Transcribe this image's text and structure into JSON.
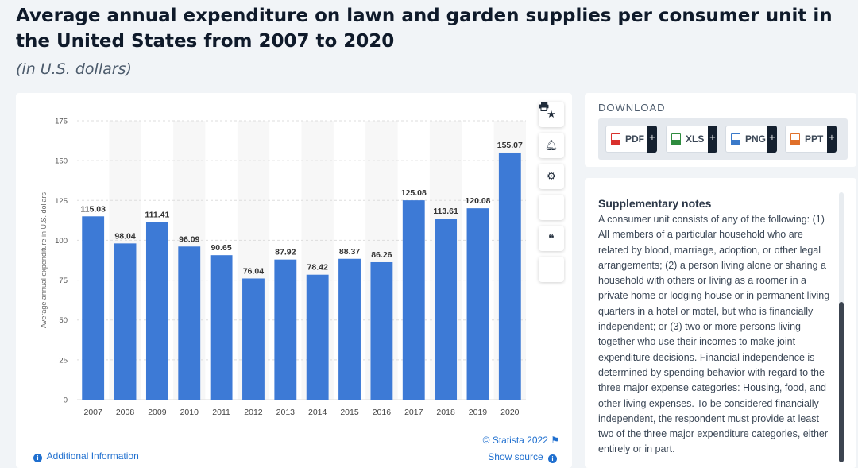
{
  "header": {
    "title": "Average annual expenditure on lawn and garden supplies per consumer unit in the United States from 2007 to 2020",
    "subtitle": "(in U.S. dollars)"
  },
  "toolbar": {
    "icons": [
      "star-icon",
      "bell-icon",
      "gear-icon",
      "share-icon",
      "quote-icon",
      "print-icon"
    ]
  },
  "chart_data": {
    "type": "bar",
    "categories": [
      "2007",
      "2008",
      "2009",
      "2010",
      "2011",
      "2012",
      "2013",
      "2014",
      "2015",
      "2016",
      "2017",
      "2018",
      "2019",
      "2020"
    ],
    "values": [
      115.03,
      98.04,
      111.41,
      96.09,
      90.65,
      76.04,
      87.92,
      78.42,
      88.37,
      86.26,
      125.08,
      113.61,
      120.08,
      155.07
    ],
    "value_labels": [
      "115.03",
      "98.04",
      "111.41",
      "96.09",
      "90.65",
      "76.04",
      "87.92",
      "78.42",
      "88.37",
      "86.26",
      "125.08",
      "113.61",
      "120.08",
      "155.07"
    ],
    "ylabel": "Average annual expenditure in U.S. dollars",
    "ylim": [
      0,
      175
    ],
    "yticks": [
      "0",
      "25",
      "50",
      "75",
      "100",
      "125",
      "150",
      "175"
    ],
    "bar_color": "#3d7ad6",
    "grid": true
  },
  "footer": {
    "credit": "© Statista 2022",
    "source": "Show source",
    "additional_info": "Additional Information"
  },
  "download": {
    "title": "DOWNLOAD",
    "buttons": [
      {
        "label": "PDF",
        "color": "#d9302c"
      },
      {
        "label": "XLS",
        "color": "#2e8b3e"
      },
      {
        "label": "PNG",
        "color": "#3a79c9"
      },
      {
        "label": "PPT",
        "color": "#e0702a"
      }
    ]
  },
  "notes": {
    "title": "Supplementary notes",
    "text": "A consumer unit consists of any of the following: (1) All members of a particular household who are related by blood, marriage, adoption, or other legal arrangements; (2) a person living alone or sharing a household with others or living as a roomer in a private home or lodging house or in permanent living quarters in a hotel or motel, but who is financially independent; or (3) two or more persons living together who use their incomes to make joint expenditure decisions. Financial independence is determined by spending behavior with regard to the three major expense categories: Housing, food, and other living expenses. To be considered financially independent, the respondent must provide at least two of the three major expenditure categories, either entirely or in part."
  }
}
